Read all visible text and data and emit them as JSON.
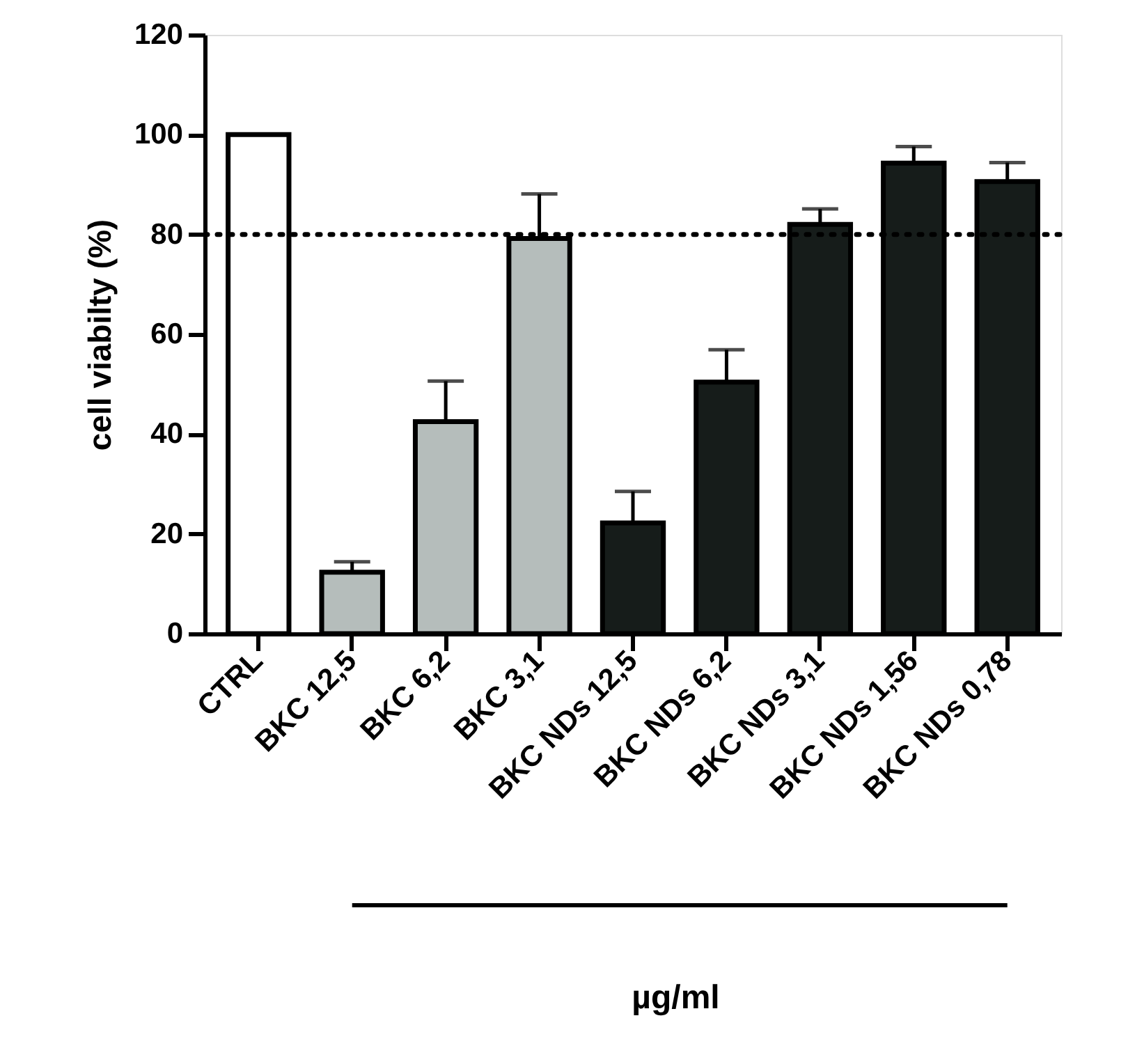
{
  "chart_data": {
    "type": "bar",
    "ylabel": "cell viabilty (%)",
    "categories": [
      "CTRL",
      "BKC 12,5",
      "BKC 6,2",
      "BKC 3,1",
      "BKC NDs 12,5",
      "BKC NDs 6,2",
      "BKC NDs 3,1",
      "BKC NDs 1,56",
      "BKC NDs 0,78"
    ],
    "values": [
      100,
      12.3,
      42.5,
      79.2,
      22.2,
      50.4,
      82.0,
      94.3,
      90.6
    ],
    "errors": [
      null,
      2.1,
      8.1,
      8.9,
      6.3,
      6.5,
      3.1,
      3.3,
      3.8
    ],
    "colors": [
      "#ffffff",
      "#b5bdbb",
      "#b5bdbb",
      "#b5bdbb",
      "#161c1a",
      "#161c1a",
      "#161c1a",
      "#161c1a",
      "#161c1a"
    ],
    "ylim": [
      0,
      120
    ],
    "yticks": [
      0,
      20,
      40,
      60,
      80,
      100,
      120
    ],
    "ref_lines": [
      {
        "axis": "y",
        "value": 80,
        "line_style": "dotted",
        "color": "#000000"
      }
    ],
    "annotations": [
      "µg/ml"
    ],
    "grid": false,
    "legend": false
  }
}
